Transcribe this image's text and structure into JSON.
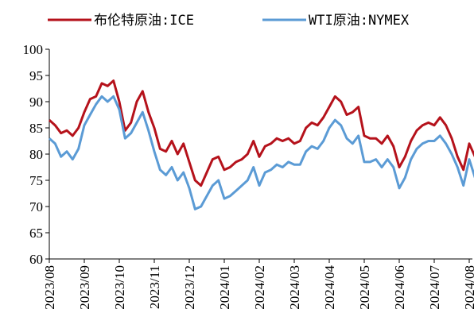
{
  "chart_data": {
    "type": "line",
    "categories": [
      "2023/08",
      null,
      null,
      null,
      null,
      null,
      "2023/09",
      null,
      null,
      null,
      null,
      null,
      "2023/10",
      null,
      null,
      null,
      null,
      null,
      "2023/11",
      null,
      null,
      null,
      null,
      null,
      "2023/12",
      null,
      null,
      null,
      null,
      null,
      "2024/01",
      null,
      null,
      null,
      null,
      null,
      "2024/02",
      null,
      null,
      null,
      null,
      null,
      "2024/03",
      null,
      null,
      null,
      null,
      null,
      "2024/04",
      null,
      null,
      null,
      null,
      null,
      "2024/05",
      null,
      null,
      null,
      null,
      null,
      "2024/06",
      null,
      null,
      null,
      null,
      null,
      "2024/07",
      null,
      null,
      null,
      null,
      null,
      "2024/08",
      null
    ],
    "series": [
      {
        "name": "布伦特原油:ICE",
        "color": "#b5121b",
        "values": [
          86.5,
          85.5,
          84,
          84.5,
          83.5,
          85,
          88,
          90.5,
          91,
          93.5,
          93,
          94,
          90,
          84.5,
          86,
          90,
          92,
          88,
          85,
          81,
          80.5,
          82.5,
          80,
          82,
          78.5,
          75,
          74,
          76.5,
          79,
          79.5,
          77,
          77.5,
          78.5,
          79,
          80,
          82.5,
          79.5,
          81.5,
          82,
          83,
          82.5,
          83,
          82,
          82.5,
          85,
          86,
          85.5,
          87,
          89,
          91,
          90,
          87.5,
          88,
          89,
          83.5,
          83,
          83,
          82,
          83.5,
          81.5,
          77.5,
          79.5,
          82.5,
          84.5,
          85.5,
          86,
          85.5,
          87,
          85.5,
          83,
          79.5,
          77,
          82,
          79.5
        ]
      },
      {
        "name": "WTI原油:NYMEX",
        "color": "#5b9bd5",
        "values": [
          83,
          82,
          79.5,
          80.5,
          79,
          81,
          85.5,
          87.5,
          89.5,
          91,
          90,
          91,
          88.5,
          83,
          84,
          86,
          88,
          84.5,
          80.5,
          77,
          76,
          77.5,
          75,
          76.5,
          73.5,
          69.5,
          70,
          72,
          74,
          75,
          71.5,
          72,
          73,
          74,
          75,
          77.5,
          74,
          76.5,
          77,
          78,
          77.5,
          78.5,
          78,
          78,
          80.5,
          81.5,
          81,
          82.5,
          85,
          86.5,
          85.5,
          83,
          82,
          83.5,
          78.5,
          78.5,
          79,
          77.5,
          79,
          77.5,
          73.5,
          75.5,
          79,
          81,
          82,
          82.5,
          82.5,
          83.5,
          82,
          80,
          77.5,
          74,
          79,
          75.5
        ]
      }
    ],
    "ylim": [
      60,
      100
    ],
    "yticks": [
      60,
      65,
      70,
      75,
      80,
      85,
      90,
      95,
      100
    ],
    "grid": false,
    "legend": "top"
  }
}
